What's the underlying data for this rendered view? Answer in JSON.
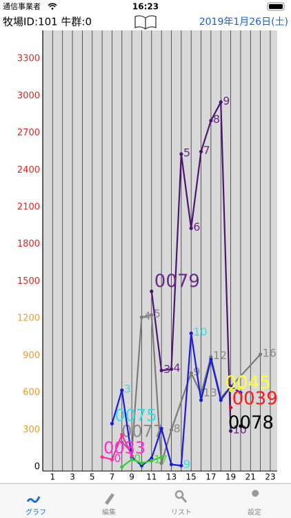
{
  "status": {
    "carrier": "通信事業者",
    "time": "16:23"
  },
  "header": {
    "farm": "牧場ID:101 牛群:0",
    "date": "2019年1月26日(土)"
  },
  "chart_data": {
    "type": "line",
    "xlim": [
      0,
      23.7
    ],
    "ylim": [
      0,
      3530
    ],
    "xticks": [
      1,
      3,
      5,
      7,
      9,
      11,
      13,
      15,
      17,
      19,
      21,
      23
    ],
    "xgrid": [
      1,
      2,
      3,
      4,
      5,
      6,
      7,
      8,
      9,
      10,
      11,
      12,
      13,
      14,
      15,
      16,
      17,
      18,
      19,
      20,
      21,
      22,
      23
    ],
    "yticks": [
      0,
      300,
      600,
      900,
      1200,
      1500,
      1800,
      2100,
      2400,
      2700,
      3000,
      3300
    ],
    "ytick_colors": [
      "#000000",
      "#f39c12",
      "#f39c12",
      "#f39c12",
      "#f39c12",
      "#e8231f",
      "#e8231f",
      "#e8231f",
      "#e8231f",
      "#e8231f",
      "#e8231f",
      "#e8231f"
    ],
    "series": [
      {
        "name": "0079",
        "color": "#4b1470",
        "label_color": "#6a2a8a",
        "x": [
          11,
          12,
          13,
          14,
          15,
          16,
          17,
          18,
          19
        ],
        "values": [
          1420,
          780,
          790,
          2530,
          1930,
          2550,
          2800,
          2950,
          290
        ],
        "labels": [
          null,
          "3",
          "4",
          "5",
          "6",
          "7",
          "8",
          "9",
          "10"
        ]
      },
      {
        "name": "0077",
        "color": "#7a7a7a",
        "label_color": "#8a8a8a",
        "x": [
          8,
          9,
          10,
          11,
          12,
          13,
          15,
          16,
          17,
          18,
          22
        ],
        "values": [
          200,
          120,
          1210,
          1230,
          30,
          300,
          760,
          590,
          890,
          560,
          910
        ],
        "labels": [
          null,
          null,
          "4",
          "5",
          null,
          "8",
          "9",
          "13",
          "12",
          null,
          "16"
        ]
      },
      {
        "name": "0075",
        "color": "#1a1adc",
        "label_color": "#33e0e8",
        "x": [
          7,
          8,
          9,
          10,
          11,
          12,
          13,
          14,
          15,
          16,
          17,
          18,
          19,
          20
        ],
        "values": [
          350,
          620,
          80,
          10,
          70,
          310,
          20,
          10,
          1080,
          540,
          870,
          540,
          650,
          600
        ],
        "labels": [
          null,
          "3",
          null,
          null,
          null,
          null,
          null,
          "9",
          "10",
          null,
          null,
          null,
          null,
          null
        ]
      },
      {
        "name": "0033",
        "color": "#ff2aa0",
        "label_color": "#ff2ad0",
        "x": [
          6,
          7,
          8,
          9
        ],
        "values": [
          80,
          60,
          260,
          90
        ],
        "labels": [
          null,
          "0",
          null,
          null
        ]
      },
      {
        "name": "0045",
        "color": "#f0f020",
        "label_color": "#ffff33",
        "x": [
          19,
          20
        ],
        "values": [
          620,
          640
        ],
        "labels": [
          null,
          null
        ]
      },
      {
        "name": "0039",
        "color": "#e01010",
        "label_color": "#ff1a1a",
        "x": [
          19
        ],
        "values": [
          480
        ],
        "labels": [
          null
        ]
      },
      {
        "name": "0078",
        "color": "#000000",
        "label_color": "#000000",
        "x": [
          20
        ],
        "values": [
          330
        ],
        "labels": [
          null
        ]
      },
      {
        "color": "#33cc33",
        "label_color": "#44dd44",
        "x": [
          8,
          9,
          10,
          11,
          12
        ],
        "values": [
          0,
          60,
          30,
          50,
          80
        ],
        "labels": [
          null,
          "0",
          null,
          "17",
          null
        ]
      }
    ]
  },
  "tabs": [
    "グラフ",
    "編集",
    "リスト",
    "設定"
  ]
}
